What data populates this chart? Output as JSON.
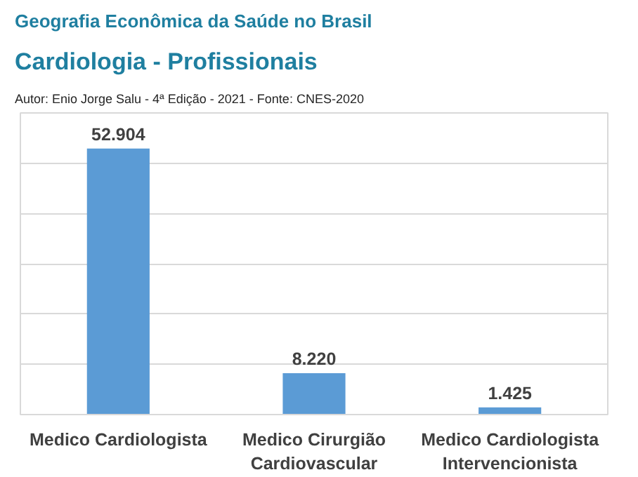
{
  "chart_data": {
    "type": "bar",
    "title": "Geografia Econômica da Saúde no Brasil",
    "subtitle": "Cardiologia - Profissionais",
    "annotations": [
      "Autor: Enio Jorge Salu - 4ª Edição - 2021 - Fonte: CNES-2020"
    ],
    "categories": [
      "Medico Cardiologista",
      "Medico Cirurgião Cardiovascular",
      "Medico Cardiologista Intervencionista"
    ],
    "values": [
      52904,
      8220,
      1425
    ],
    "value_labels": [
      "52.904",
      "8.220",
      "1.425"
    ],
    "color": "#5b9bd5",
    "ylim": [
      0,
      60000
    ],
    "yticks": [
      {
        "value": 0,
        "label": null
      },
      {
        "value": 10000,
        "label": null
      },
      {
        "value": 20000,
        "label": null
      },
      {
        "value": 30000,
        "label": null
      },
      {
        "value": 40000,
        "label": null
      },
      {
        "value": 50000,
        "label": null
      },
      {
        "value": 60000,
        "label": null
      }
    ],
    "grid": "y",
    "tick_labels": "x"
  }
}
